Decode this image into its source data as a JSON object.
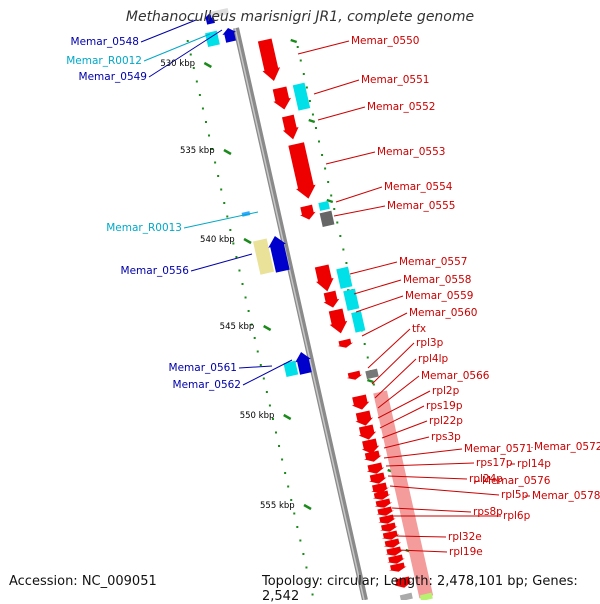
{
  "title": "Methanoculleus marisnigri JR1, complete genome",
  "footer": {
    "accession": "Accession: NC_009051",
    "topology": "Topology: circular; Length: 2,478,101 bp; Genes: 2,542"
  },
  "colors": {
    "forward_gene": "#ee0000",
    "rna_feature": "#00e0e8",
    "reverse_gene": "#0000cc",
    "pseudo_gene": "#ebe29a",
    "rrna_operon": "#f49c9c",
    "backbone": "#8a8a8a",
    "tick": "#1a8a1a",
    "left_label_dark": "#0000aa",
    "left_label_light": "#00a8c8",
    "right_label": "#cc0000"
  },
  "ruler": {
    "labels": [
      "530 kbp",
      "535 kbp",
      "540 kbp",
      "545 kbp",
      "550 kbp",
      "555 kbp"
    ]
  },
  "left_labels": [
    "Memar_0548",
    "Memar_R0012",
    "Memar_0549",
    "Memar_R0013",
    "Memar_0556",
    "Memar_0561",
    "Memar_0562"
  ],
  "right_labels": [
    "Memar_0550",
    "Memar_0551",
    "Memar_0552",
    "Memar_0553",
    "Memar_0554",
    "Memar_0555",
    "Memar_0557",
    "Memar_0558",
    "Memar_0559",
    "Memar_0560",
    "tfx",
    "rpl3p",
    "rpl4lp",
    "Memar_0566",
    "rpl2p",
    "rps19p",
    "rpl22p",
    "rps3p",
    "Memar_0571",
    "Memar_0572",
    "rps17p",
    "rpl14p",
    "rpl24p",
    "Memar_0576",
    "rpl5p",
    "Memar_0578",
    "rps8p",
    "rpl6p",
    "rpl32e",
    "rpl19e"
  ]
}
